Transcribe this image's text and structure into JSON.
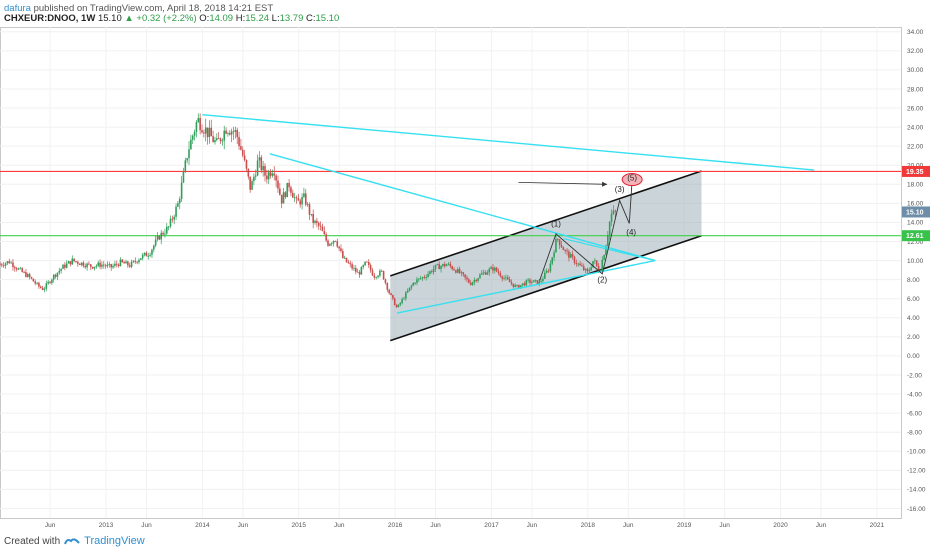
{
  "header": {
    "author": "dafura",
    "published": "published on TradingView.com, April 18, 2018 14:21 EST",
    "symbol": "CHXEUR:DNOO, 1W",
    "last": "15.10",
    "change": "+0.32 (+2.2%)",
    "open_label": "O:",
    "open": "14.09",
    "high_label": "H:",
    "high": "15.24",
    "low_label": "L:",
    "low": "13.79",
    "close_label": "C:",
    "close": "15.10"
  },
  "footer": {
    "created_with": "Created with",
    "brand": "TradingView"
  },
  "chart_data": {
    "type": "candlestick",
    "title": "",
    "xlabel": "",
    "ylabel": "",
    "ylim": [
      -17,
      34.5
    ],
    "y_ticks": [
      "34.00",
      "32.00",
      "30.00",
      "28.00",
      "26.00",
      "24.00",
      "22.00",
      "20.00",
      "18.00",
      "16.00",
      "14.00",
      "12.00",
      "10.00",
      "8.00",
      "6.00",
      "4.00",
      "2.00",
      "0.00",
      "-2.00",
      "-4.00",
      "-6.00",
      "-8.00",
      "-10.00",
      "-12.00",
      "-14.00",
      "-16.00"
    ],
    "x_ticks": [
      {
        "label": "Jun",
        "t": 2012.42
      },
      {
        "label": "2013",
        "t": 2013.0
      },
      {
        "label": "Jun",
        "t": 2013.42
      },
      {
        "label": "2014",
        "t": 2014.0
      },
      {
        "label": "Jun",
        "t": 2014.42
      },
      {
        "label": "2015",
        "t": 2015.0
      },
      {
        "label": "Jun",
        "t": 2015.42
      },
      {
        "label": "2016",
        "t": 2016.0
      },
      {
        "label": "Jun",
        "t": 2016.42
      },
      {
        "label": "2017",
        "t": 2017.0
      },
      {
        "label": "Jun",
        "t": 2017.42
      },
      {
        "label": "2018",
        "t": 2018.0
      },
      {
        "label": "Jun",
        "t": 2018.42
      },
      {
        "label": "2019",
        "t": 2019.0
      },
      {
        "label": "Jun",
        "t": 2019.42
      },
      {
        "label": "2020",
        "t": 2020.0
      },
      {
        "label": "Jun",
        "t": 2020.42
      },
      {
        "label": "2021",
        "t": 2021.0
      }
    ],
    "price_path": [
      [
        2011.9,
        9.6
      ],
      [
        2012.0,
        9.9
      ],
      [
        2012.1,
        9.0
      ],
      [
        2012.2,
        8.3
      ],
      [
        2012.3,
        7.3
      ],
      [
        2012.35,
        7.0
      ],
      [
        2012.45,
        8.3
      ],
      [
        2012.55,
        9.3
      ],
      [
        2012.65,
        10.0
      ],
      [
        2012.75,
        9.7
      ],
      [
        2012.85,
        9.4
      ],
      [
        2012.95,
        9.6
      ],
      [
        2013.05,
        9.3
      ],
      [
        2013.15,
        9.8
      ],
      [
        2013.25,
        9.5
      ],
      [
        2013.35,
        10.3
      ],
      [
        2013.45,
        10.8
      ],
      [
        2013.55,
        12.5
      ],
      [
        2013.65,
        13.5
      ],
      [
        2013.75,
        16.0
      ],
      [
        2013.85,
        21.5
      ],
      [
        2013.95,
        24.8
      ],
      [
        2014.05,
        23.5
      ],
      [
        2014.15,
        22.2
      ],
      [
        2014.25,
        24.0
      ],
      [
        2014.35,
        23.4
      ],
      [
        2014.42,
        21.0
      ],
      [
        2014.5,
        17.5
      ],
      [
        2014.58,
        20.5
      ],
      [
        2014.66,
        18.8
      ],
      [
        2014.74,
        19.8
      ],
      [
        2014.82,
        16.3
      ],
      [
        2014.9,
        18.0
      ],
      [
        2014.98,
        16.0
      ],
      [
        2015.06,
        16.6
      ],
      [
        2015.14,
        14.2
      ],
      [
        2015.22,
        13.5
      ],
      [
        2015.3,
        11.8
      ],
      [
        2015.38,
        12.3
      ],
      [
        2015.46,
        10.2
      ],
      [
        2015.54,
        9.4
      ],
      [
        2015.62,
        8.6
      ],
      [
        2015.7,
        9.8
      ],
      [
        2015.78,
        8.4
      ],
      [
        2015.86,
        8.8
      ],
      [
        2015.94,
        6.6
      ],
      [
        2016.02,
        5.0
      ],
      [
        2016.1,
        6.3
      ],
      [
        2016.2,
        7.8
      ],
      [
        2016.3,
        8.3
      ],
      [
        2016.42,
        9.3
      ],
      [
        2016.54,
        9.6
      ],
      [
        2016.66,
        8.8
      ],
      [
        2016.78,
        7.6
      ],
      [
        2016.9,
        8.6
      ],
      [
        2017.02,
        9.2
      ],
      [
        2017.14,
        8.1
      ],
      [
        2017.26,
        7.2
      ],
      [
        2017.38,
        7.8
      ],
      [
        2017.5,
        7.7
      ],
      [
        2017.6,
        9.2
      ],
      [
        2017.68,
        12.4
      ],
      [
        2017.76,
        11.0
      ],
      [
        2017.84,
        10.2
      ],
      [
        2017.92,
        9.4
      ],
      [
        2018.0,
        8.7
      ],
      [
        2018.06,
        10.1
      ],
      [
        2018.12,
        8.8
      ],
      [
        2018.18,
        11.3
      ],
      [
        2018.24,
        14.8
      ],
      [
        2018.3,
        15.1
      ]
    ],
    "horizontal_levels": [
      {
        "value": 19.35,
        "label": "19.35",
        "color": "#ff3b3b"
      },
      {
        "value": 12.61,
        "label": "12.61",
        "color": "#3fd14a"
      }
    ],
    "last_price_tag": {
      "value": 15.1,
      "label": "15.10",
      "color": "#6d8da8"
    },
    "trendlines": [
      {
        "name": "upper-descending",
        "from": [
          2014.0,
          25.3
        ],
        "to": [
          2020.35,
          19.5
        ],
        "color": "#35e0f0"
      },
      {
        "name": "second-descending",
        "from": [
          2014.7,
          21.2
        ],
        "to": [
          2018.7,
          10.0
        ],
        "color": "#35e0f0"
      },
      {
        "name": "rising-support",
        "from": [
          2016.02,
          4.5
        ],
        "to": [
          2018.7,
          10.0
        ],
        "color": "#35e0f0"
      }
    ],
    "channel": {
      "upper": [
        [
          2015.95,
          8.4
        ],
        [
          2019.18,
          19.4
        ]
      ],
      "lower": [
        [
          2015.95,
          1.6
        ],
        [
          2019.18,
          12.6
        ]
      ],
      "fill": "#9eb0ba"
    },
    "waves": [
      {
        "label": "(1)",
        "t": 2017.67,
        "v": 13.6
      },
      {
        "label": "(2)",
        "t": 2018.15,
        "v": 7.7
      },
      {
        "label": "(3)",
        "t": 2018.33,
        "v": 17.2
      },
      {
        "label": "(4)",
        "t": 2018.45,
        "v": 12.7
      },
      {
        "label": "(5)",
        "t": 2018.46,
        "v": 18.4
      }
    ],
    "wave_path": [
      [
        2017.5,
        7.9
      ],
      [
        2017.67,
        12.8
      ],
      [
        2018.15,
        8.6
      ],
      [
        2018.33,
        16.3
      ],
      [
        2018.43,
        13.9
      ],
      [
        2018.46,
        18.4
      ]
    ],
    "arrow": {
      "from": [
        2017.28,
        18.2
      ],
      "to": [
        2018.2,
        18.0
      ]
    },
    "target_ellipse": {
      "t": 2018.46,
      "v": 18.5
    }
  }
}
